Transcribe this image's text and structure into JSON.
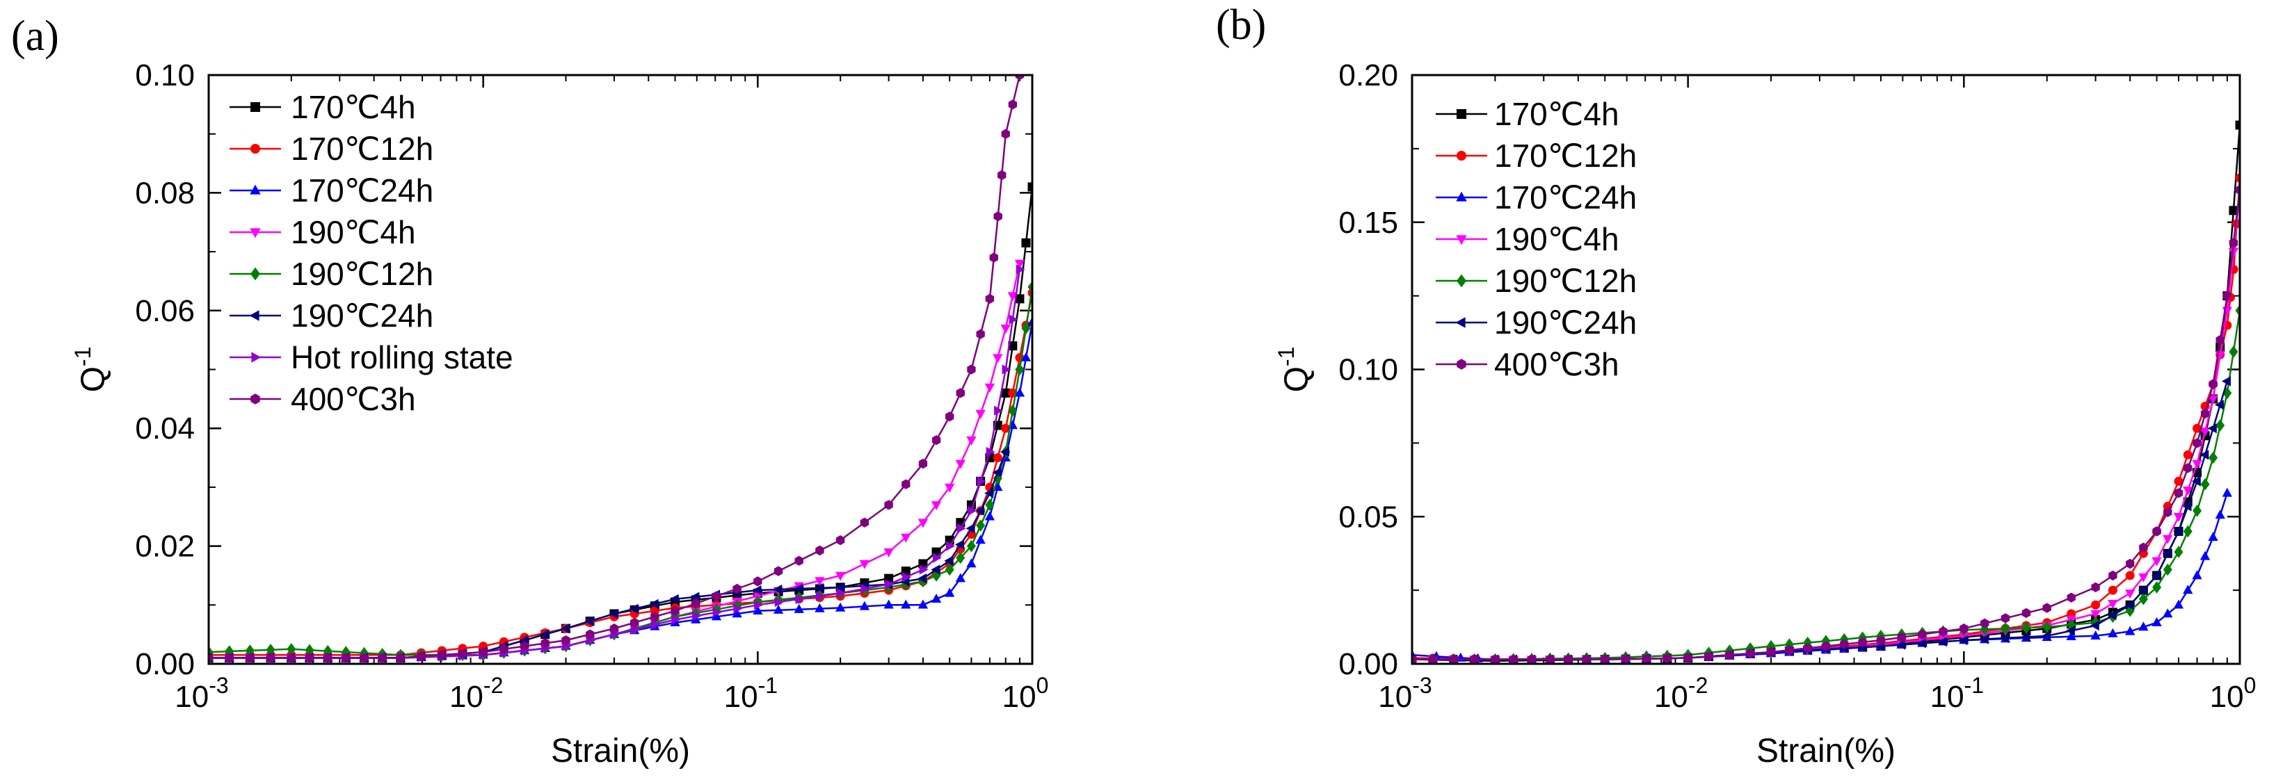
{
  "figure": {
    "panels": [
      {
        "label": "(a)",
        "xlabel": "Strain(%)",
        "ylabel": "Q",
        "ylabel_sup": "-1",
        "xscale": "log",
        "xlim": [
          0.001,
          1
        ],
        "ylim": [
          0,
          0.1
        ],
        "xticks": [
          {
            "base": "10",
            "exp": "-3",
            "value": 0.001
          },
          {
            "base": "10",
            "exp": "-2",
            "value": 0.01
          },
          {
            "base": "10",
            "exp": "-1",
            "value": 0.1
          },
          {
            "base": "10",
            "exp": "0",
            "value": 1
          }
        ],
        "yticks": [
          "0.00",
          "0.02",
          "0.04",
          "0.06",
          "0.08",
          "0.10"
        ],
        "legend": [
          {
            "name": "170℃4h",
            "color": "#000000",
            "marker": "square"
          },
          {
            "name": "170℃12h",
            "color": "#ff0000",
            "marker": "circle"
          },
          {
            "name": "170℃24h",
            "color": "#0000ff",
            "marker": "triangle-up"
          },
          {
            "name": "190℃4h",
            "color": "#ff00ff",
            "marker": "triangle-down"
          },
          {
            "name": "190℃12h",
            "color": "#008000",
            "marker": "diamond"
          },
          {
            "name": "190℃24h",
            "color": "#000080",
            "marker": "triangle-left"
          },
          {
            "name": "Hot rolling state",
            "color": "#9400d3",
            "marker": "triangle-right"
          },
          {
            "name": "400℃3h",
            "color": "#800080",
            "marker": "hexagon"
          }
        ]
      },
      {
        "label": "(b)",
        "xlabel": "Strain(%)",
        "ylabel": "Q",
        "ylabel_sup": "-1",
        "xscale": "log",
        "xlim": [
          0.001,
          1
        ],
        "ylim": [
          0,
          0.2
        ],
        "xticks": [
          {
            "base": "10",
            "exp": "-3",
            "value": 0.001
          },
          {
            "base": "10",
            "exp": "-2",
            "value": 0.01
          },
          {
            "base": "10",
            "exp": "-1",
            "value": 0.1
          },
          {
            "base": "10",
            "exp": "0",
            "value": 1
          }
        ],
        "yticks": [
          "0.00",
          "0.05",
          "0.10",
          "0.15",
          "0.20"
        ],
        "legend": [
          {
            "name": "170℃4h",
            "color": "#000000",
            "marker": "square"
          },
          {
            "name": "170℃12h",
            "color": "#ff0000",
            "marker": "circle"
          },
          {
            "name": "170℃24h",
            "color": "#0000ff",
            "marker": "triangle-up"
          },
          {
            "name": "190℃4h",
            "color": "#ff00ff",
            "marker": "triangle-down"
          },
          {
            "name": "190℃12h",
            "color": "#008000",
            "marker": "diamond"
          },
          {
            "name": "190℃24h",
            "color": "#000080",
            "marker": "triangle-left"
          },
          {
            "name": "400℃3h",
            "color": "#800080",
            "marker": "hexagon"
          }
        ]
      }
    ]
  },
  "chart_data": [
    {
      "type": "line",
      "title": "(a)",
      "xlabel": "Strain(%)",
      "ylabel": "Q-1",
      "xscale": "log",
      "xlim": [
        0.001,
        1
      ],
      "ylim": [
        0,
        0.1
      ],
      "series": [
        {
          "name": "170℃4h",
          "color": "#000000",
          "marker": "square",
          "x": [
            0.001,
            0.002,
            0.005,
            0.01,
            0.02,
            0.03,
            0.05,
            0.1,
            0.2,
            0.3,
            0.4,
            0.5,
            0.6,
            0.7,
            0.8,
            0.9,
            1.0
          ],
          "y": [
            0.001,
            0.001,
            0.001,
            0.002,
            0.006,
            0.0085,
            0.0105,
            0.012,
            0.013,
            0.0145,
            0.017,
            0.021,
            0.027,
            0.035,
            0.046,
            0.062,
            0.081
          ]
        },
        {
          "name": "170℃12h",
          "color": "#ff0000",
          "marker": "circle",
          "x": [
            0.001,
            0.002,
            0.005,
            0.01,
            0.02,
            0.03,
            0.05,
            0.1,
            0.2,
            0.3,
            0.4,
            0.5,
            0.6,
            0.7,
            0.8,
            0.9,
            1.0
          ],
          "y": [
            0.0015,
            0.0015,
            0.0015,
            0.003,
            0.006,
            0.008,
            0.0095,
            0.0105,
            0.0115,
            0.0125,
            0.014,
            0.017,
            0.022,
            0.03,
            0.04,
            0.052,
            0.063
          ]
        },
        {
          "name": "170℃24h",
          "color": "#0000ff",
          "marker": "triangle-up",
          "x": [
            0.001,
            0.002,
            0.005,
            0.01,
            0.02,
            0.03,
            0.05,
            0.1,
            0.2,
            0.3,
            0.4,
            0.5,
            0.6,
            0.7,
            0.8,
            0.9,
            1.0
          ],
          "y": [
            0.001,
            0.001,
            0.001,
            0.0015,
            0.003,
            0.005,
            0.007,
            0.009,
            0.0095,
            0.01,
            0.01,
            0.012,
            0.017,
            0.025,
            0.035,
            0.046,
            0.058
          ]
        },
        {
          "name": "190℃4h",
          "color": "#ff00ff",
          "marker": "triangle-down",
          "x": [
            0.001,
            0.002,
            0.005,
            0.01,
            0.02,
            0.03,
            0.05,
            0.1,
            0.2,
            0.3,
            0.4,
            0.5,
            0.6,
            0.7,
            0.8,
            0.9
          ],
          "y": [
            0.001,
            0.001,
            0.001,
            0.0015,
            0.003,
            0.005,
            0.008,
            0.0115,
            0.015,
            0.019,
            0.024,
            0.03,
            0.038,
            0.047,
            0.057,
            0.068
          ]
        },
        {
          "name": "190℃12h",
          "color": "#008000",
          "marker": "diamond",
          "x": [
            0.001,
            0.002,
            0.005,
            0.01,
            0.02,
            0.03,
            0.05,
            0.1,
            0.2,
            0.3,
            0.4,
            0.5,
            0.6,
            0.7,
            0.8,
            0.9,
            1.0
          ],
          "y": [
            0.002,
            0.0025,
            0.0015,
            0.0015,
            0.003,
            0.005,
            0.008,
            0.0105,
            0.012,
            0.013,
            0.014,
            0.016,
            0.02,
            0.027,
            0.036,
            0.05,
            0.064
          ]
        },
        {
          "name": "190℃24h",
          "color": "#000080",
          "marker": "triangle-left",
          "x": [
            0.001,
            0.002,
            0.005,
            0.01,
            0.02,
            0.03,
            0.05,
            0.1,
            0.2,
            0.3,
            0.4,
            0.5,
            0.6,
            0.7,
            0.8
          ],
          "y": [
            0.001,
            0.001,
            0.001,
            0.002,
            0.006,
            0.0085,
            0.011,
            0.0125,
            0.013,
            0.0135,
            0.0145,
            0.0175,
            0.023,
            0.029,
            0.036
          ]
        },
        {
          "name": "Hot rolling state",
          "color": "#9400d3",
          "marker": "triangle-right",
          "x": [
            0.001,
            0.002,
            0.005,
            0.01,
            0.02,
            0.03,
            0.05,
            0.1,
            0.2,
            0.3,
            0.4,
            0.5,
            0.6,
            0.7,
            0.8,
            0.9
          ],
          "y": [
            0.001,
            0.001,
            0.001,
            0.0015,
            0.003,
            0.005,
            0.0075,
            0.01,
            0.012,
            0.0135,
            0.016,
            0.02,
            0.026,
            0.036,
            0.05,
            0.067
          ]
        },
        {
          "name": "400℃3h",
          "color": "#800080",
          "marker": "hexagon",
          "x": [
            0.001,
            0.002,
            0.005,
            0.01,
            0.02,
            0.03,
            0.05,
            0.1,
            0.2,
            0.3,
            0.4,
            0.5,
            0.6,
            0.7,
            0.75,
            0.8,
            0.9
          ],
          "y": [
            0.001,
            0.001,
            0.001,
            0.002,
            0.004,
            0.006,
            0.009,
            0.014,
            0.021,
            0.027,
            0.034,
            0.042,
            0.05,
            0.062,
            0.076,
            0.09,
            0.1
          ]
        }
      ]
    },
    {
      "type": "line",
      "title": "(b)",
      "xlabel": "Strain(%)",
      "ylabel": "Q-1",
      "xscale": "log",
      "xlim": [
        0.001,
        1
      ],
      "ylim": [
        0,
        0.2
      ],
      "series": [
        {
          "name": "170℃4h",
          "color": "#000000",
          "marker": "square",
          "x": [
            0.001,
            0.002,
            0.005,
            0.01,
            0.02,
            0.05,
            0.1,
            0.2,
            0.3,
            0.4,
            0.5,
            0.6,
            0.7,
            0.8,
            0.9,
            1.0
          ],
          "y": [
            0.0015,
            0.001,
            0.0015,
            0.002,
            0.004,
            0.006,
            0.009,
            0.012,
            0.015,
            0.02,
            0.03,
            0.045,
            0.065,
            0.09,
            0.125,
            0.183
          ]
        },
        {
          "name": "170℃12h",
          "color": "#ff0000",
          "marker": "circle",
          "x": [
            0.001,
            0.002,
            0.005,
            0.01,
            0.02,
            0.05,
            0.1,
            0.2,
            0.3,
            0.4,
            0.5,
            0.6,
            0.7,
            0.8,
            0.9,
            0.95,
            1.0
          ],
          "y": [
            0.002,
            0.0015,
            0.0015,
            0.002,
            0.004,
            0.007,
            0.01,
            0.014,
            0.02,
            0.03,
            0.045,
            0.062,
            0.08,
            0.095,
            0.115,
            0.134,
            0.165
          ]
        },
        {
          "name": "170℃24h",
          "color": "#0000ff",
          "marker": "triangle-up",
          "x": [
            0.001,
            0.0015,
            0.002,
            0.005,
            0.01,
            0.02,
            0.05,
            0.1,
            0.2,
            0.3,
            0.4,
            0.5,
            0.6,
            0.7,
            0.8,
            0.9
          ],
          "y": [
            0.003,
            0.002,
            0.0015,
            0.0015,
            0.002,
            0.0035,
            0.006,
            0.008,
            0.009,
            0.0095,
            0.011,
            0.014,
            0.02,
            0.03,
            0.043,
            0.058
          ]
        },
        {
          "name": "190℃4h",
          "color": "#ff00ff",
          "marker": "triangle-down",
          "x": [
            0.001,
            0.002,
            0.005,
            0.01,
            0.02,
            0.05,
            0.1,
            0.2,
            0.3,
            0.4,
            0.5,
            0.6,
            0.7,
            0.8,
            0.9,
            1.0
          ],
          "y": [
            0.0015,
            0.0015,
            0.0015,
            0.002,
            0.004,
            0.0065,
            0.0095,
            0.013,
            0.017,
            0.024,
            0.035,
            0.05,
            0.068,
            0.09,
            0.12,
            0.16
          ]
        },
        {
          "name": "190℃12h",
          "color": "#008000",
          "marker": "diamond",
          "x": [
            0.001,
            0.002,
            0.005,
            0.01,
            0.02,
            0.05,
            0.1,
            0.2,
            0.3,
            0.4,
            0.5,
            0.6,
            0.7,
            0.8,
            0.9,
            1.0
          ],
          "y": [
            0.0015,
            0.0015,
            0.002,
            0.003,
            0.006,
            0.0095,
            0.0115,
            0.0125,
            0.014,
            0.018,
            0.026,
            0.038,
            0.052,
            0.07,
            0.092,
            0.12
          ]
        },
        {
          "name": "190℃24h",
          "color": "#000080",
          "marker": "triangle-left",
          "x": [
            0.001,
            0.002,
            0.005,
            0.01,
            0.02,
            0.05,
            0.1,
            0.2,
            0.3,
            0.4,
            0.5,
            0.6,
            0.7,
            0.8,
            0.9
          ],
          "y": [
            0.0015,
            0.0015,
            0.0015,
            0.002,
            0.004,
            0.006,
            0.008,
            0.0095,
            0.013,
            0.02,
            0.03,
            0.045,
            0.062,
            0.08,
            0.096
          ]
        },
        {
          "name": "400℃3h",
          "color": "#800080",
          "marker": "hexagon",
          "x": [
            0.001,
            0.002,
            0.005,
            0.01,
            0.02,
            0.05,
            0.1,
            0.2,
            0.3,
            0.4,
            0.5,
            0.6,
            0.7,
            0.8,
            0.9,
            1.0
          ],
          "y": [
            0.0015,
            0.0015,
            0.0015,
            0.002,
            0.004,
            0.008,
            0.012,
            0.019,
            0.026,
            0.034,
            0.045,
            0.058,
            0.075,
            0.095,
            0.125,
            0.161
          ]
        }
      ]
    }
  ]
}
